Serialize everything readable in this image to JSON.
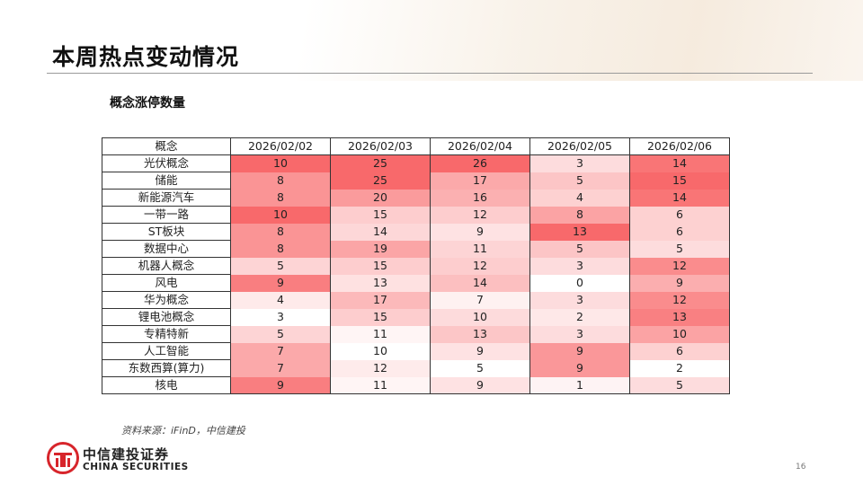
{
  "page": {
    "title": "本周热点变动情况",
    "source": "资料来源：iFinD，中信建投",
    "brand_cn": "中信建投证券",
    "brand_en": "CHINA SECURITIES",
    "page_number": "16",
    "brand_color": "#d7252b"
  },
  "chart_data": {
    "type": "heatmap",
    "title": "概念涨停数量",
    "header_first": "概念",
    "columns": [
      "2026/02/02",
      "2026/02/03",
      "2026/02/04",
      "2026/02/05",
      "2026/02/06"
    ],
    "rows": [
      {
        "label": "光伏概念",
        "values": [
          10,
          25,
          26,
          3,
          14
        ]
      },
      {
        "label": "储能",
        "values": [
          8,
          25,
          17,
          5,
          15
        ]
      },
      {
        "label": "新能源汽车",
        "values": [
          8,
          20,
          16,
          4,
          14
        ]
      },
      {
        "label": "一带一路",
        "values": [
          10,
          15,
          12,
          8,
          6
        ]
      },
      {
        "label": "ST板块",
        "values": [
          8,
          14,
          9,
          13,
          6
        ]
      },
      {
        "label": "数据中心",
        "values": [
          8,
          19,
          11,
          5,
          5
        ]
      },
      {
        "label": "机器人概念",
        "values": [
          5,
          15,
          12,
          3,
          12
        ]
      },
      {
        "label": "风电",
        "values": [
          9,
          13,
          14,
          0,
          9
        ]
      },
      {
        "label": "华为概念",
        "values": [
          4,
          17,
          7,
          3,
          12
        ]
      },
      {
        "label": "锂电池概念",
        "values": [
          3,
          15,
          10,
          2,
          13
        ]
      },
      {
        "label": "专精特新",
        "values": [
          5,
          11,
          13,
          3,
          10
        ]
      },
      {
        "label": "人工智能",
        "values": [
          7,
          10,
          9,
          9,
          6
        ]
      },
      {
        "label": "东数西算(算力)",
        "values": [
          7,
          12,
          5,
          9,
          2
        ]
      },
      {
        "label": "核电",
        "values": [
          9,
          11,
          9,
          1,
          5
        ]
      }
    ],
    "color_scale": {
      "low": "#ffffff",
      "high": "#f8696b"
    },
    "scale_mode": "per-column"
  }
}
